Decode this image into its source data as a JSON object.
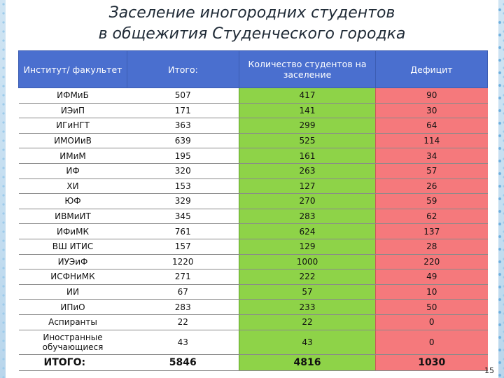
{
  "title_line1": "Заселение иногородних студентов",
  "title_line2": "в общежития Студенческого городка",
  "headers": {
    "institute": "Институт/ факультет",
    "total": "Итого:",
    "count": "Количество студентов на заселение",
    "deficit": "Дефицит"
  },
  "rows": [
    {
      "institute": "ИФМиБ",
      "total": "507",
      "count": "417",
      "deficit": "90"
    },
    {
      "institute": "ИЭиП",
      "total": "171",
      "count": "141",
      "deficit": "30"
    },
    {
      "institute": "ИГиНГТ",
      "total": "363",
      "count": "299",
      "deficit": "64"
    },
    {
      "institute": "ИМОИиВ",
      "total": "639",
      "count": "525",
      "deficit": "114"
    },
    {
      "institute": "ИМиМ",
      "total": "195",
      "count": "161",
      "deficit": "34"
    },
    {
      "institute": "ИФ",
      "total": "320",
      "count": "263",
      "deficit": "57"
    },
    {
      "institute": "ХИ",
      "total": "153",
      "count": "127",
      "deficit": "26"
    },
    {
      "institute": "ЮФ",
      "total": "329",
      "count": "270",
      "deficit": "59"
    },
    {
      "institute": "ИВМиИТ",
      "total": "345",
      "count": "283",
      "deficit": "62"
    },
    {
      "institute": "ИФиМК",
      "total": "761",
      "count": "624",
      "deficit": "137"
    },
    {
      "institute": "ВШ ИТИС",
      "total": "157",
      "count": "129",
      "deficit": "28"
    },
    {
      "institute": "ИУЭиФ",
      "total": "1220",
      "count": "1000",
      "deficit": "220"
    },
    {
      "institute": "ИСФНиМК",
      "total": "271",
      "count": "222",
      "deficit": "49"
    },
    {
      "institute": "ИИ",
      "total": "67",
      "count": "57",
      "deficit": "10"
    },
    {
      "institute": "ИПиО",
      "total": "283",
      "count": "233",
      "deficit": "50"
    },
    {
      "institute": "Аспиранты",
      "total": "22",
      "count": "22",
      "deficit": "0"
    },
    {
      "institute": "Иностранные обучающиеся",
      "total": "43",
      "count": "43",
      "deficit": "0"
    }
  ],
  "summary": {
    "institute": "ИТОГО:",
    "total": "5846",
    "count": "4816",
    "deficit": "1030"
  },
  "page_number": "15",
  "colors": {
    "header": "#4a6fcf",
    "count": "#8ed348",
    "deficit": "#f5797c"
  }
}
